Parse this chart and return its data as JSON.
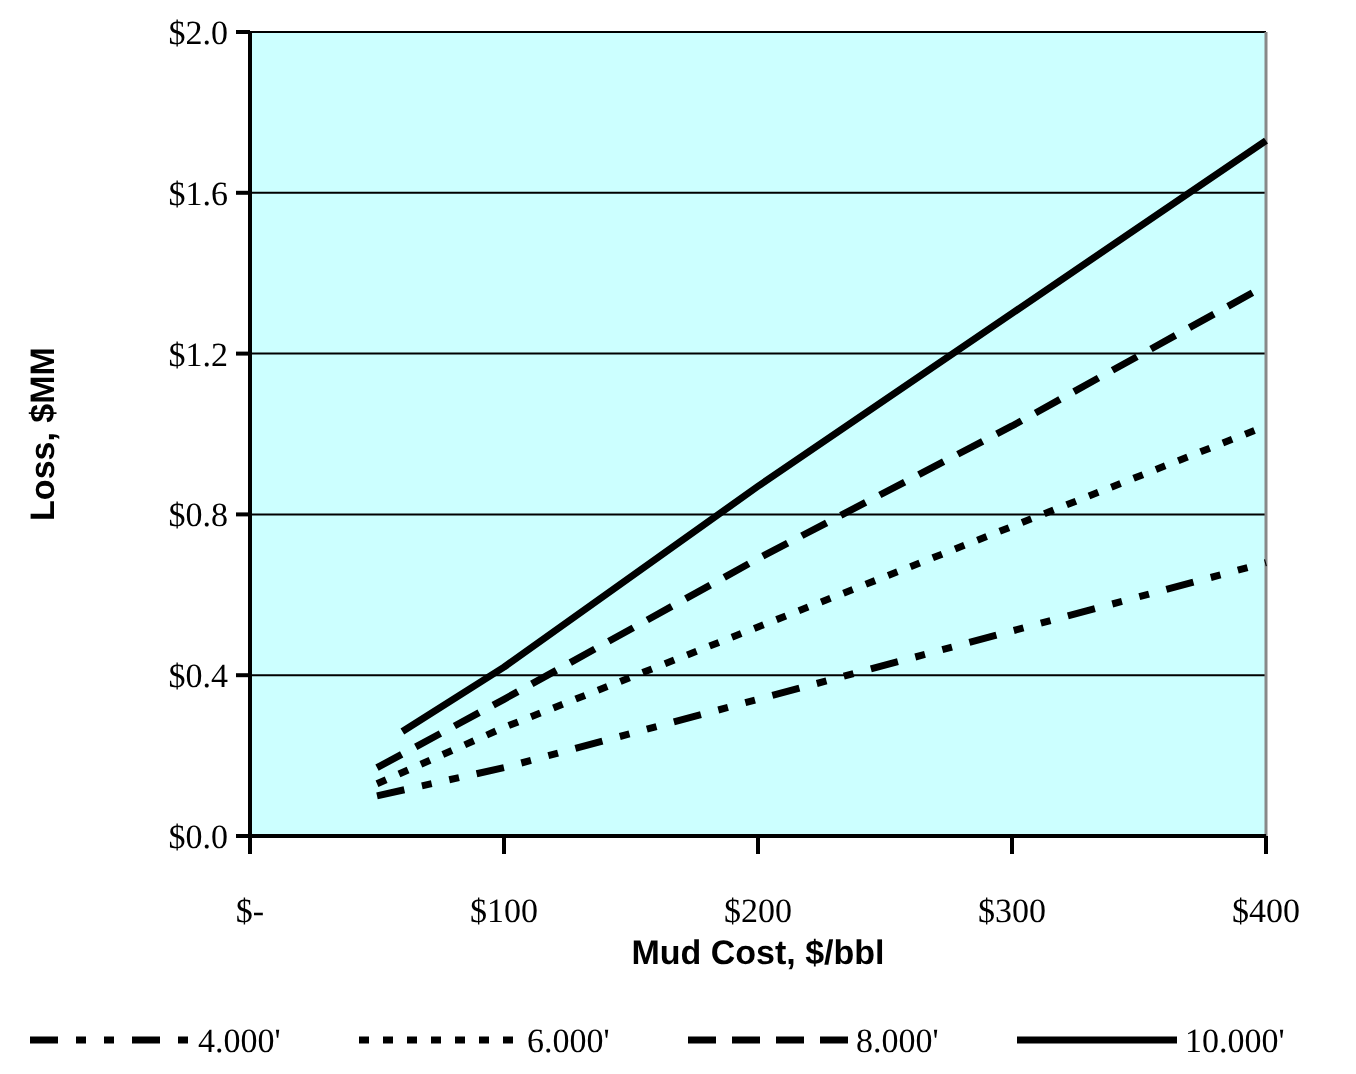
{
  "chart_data": {
    "type": "line",
    "xlabel": "Mud Cost, $/bbl",
    "ylabel": "Loss, $MM",
    "xlim": [
      0,
      400
    ],
    "xticks": [
      {
        "value": 0,
        "label": "$-"
      },
      {
        "value": 100,
        "label": "$100"
      },
      {
        "value": 200,
        "label": "$200"
      },
      {
        "value": 300,
        "label": "$300"
      },
      {
        "value": 400,
        "label": "$400"
      }
    ],
    "ylim": [
      0,
      2
    ],
    "yticks": [
      {
        "value": 0,
        "label": "$0.0"
      },
      {
        "value": 0.4,
        "label": "$0.4"
      },
      {
        "value": 0.8,
        "label": "$0.8"
      },
      {
        "value": 1.2,
        "label": "$1.2"
      },
      {
        "value": 1.6,
        "label": "$1.6"
      },
      {
        "value": 2,
        "label": "$2.0"
      }
    ],
    "grid": "y",
    "legend": "bottom",
    "marker": "none",
    "series": [
      {
        "name": "4.000'",
        "color": "#000000",
        "line_style": "dashdot",
        "x": [
          50,
          100,
          200,
          300,
          400
        ],
        "values": [
          0.1,
          0.17,
          0.34,
          0.51,
          0.68
        ]
      },
      {
        "name": "6.000'",
        "color": "#000000",
        "line_style": "dotted",
        "x": [
          50,
          100,
          200,
          300,
          400
        ],
        "values": [
          0.13,
          0.27,
          0.52,
          0.77,
          1.02
        ]
      },
      {
        "name": "8.000'",
        "color": "#000000",
        "line_style": "dashed",
        "x": [
          50,
          100,
          200,
          300,
          400
        ],
        "values": [
          0.17,
          0.34,
          0.69,
          1.02,
          1.37
        ]
      },
      {
        "name": "10.000'",
        "color": "#000000",
        "line_style": "solid",
        "x": [
          60,
          100,
          200,
          300,
          400
        ],
        "values": [
          0.26,
          0.42,
          0.87,
          1.3,
          1.73
        ]
      }
    ]
  }
}
